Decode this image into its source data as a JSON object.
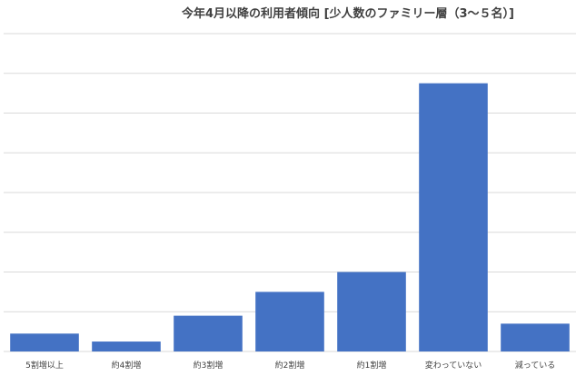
{
  "chart_data": {
    "type": "bar",
    "title": "今年4月以降の利用者傾向 [少人数のファミリー層（3～５名）]",
    "xlabel": "",
    "ylabel": "",
    "categories": [
      "5割増以上",
      "約4割増",
      "約3割増",
      "約2割増",
      "約1割増",
      "変わっていない",
      "減っている"
    ],
    "values": [
      0.45,
      0.25,
      0.9,
      1.5,
      2.0,
      6.75,
      0.7
    ],
    "ylim": [
      0,
      8
    ],
    "y_ticks_labeled": false,
    "grid": true,
    "legend": "none",
    "bar_color": "#4472c4",
    "grid_color": "#d9d9d9"
  }
}
